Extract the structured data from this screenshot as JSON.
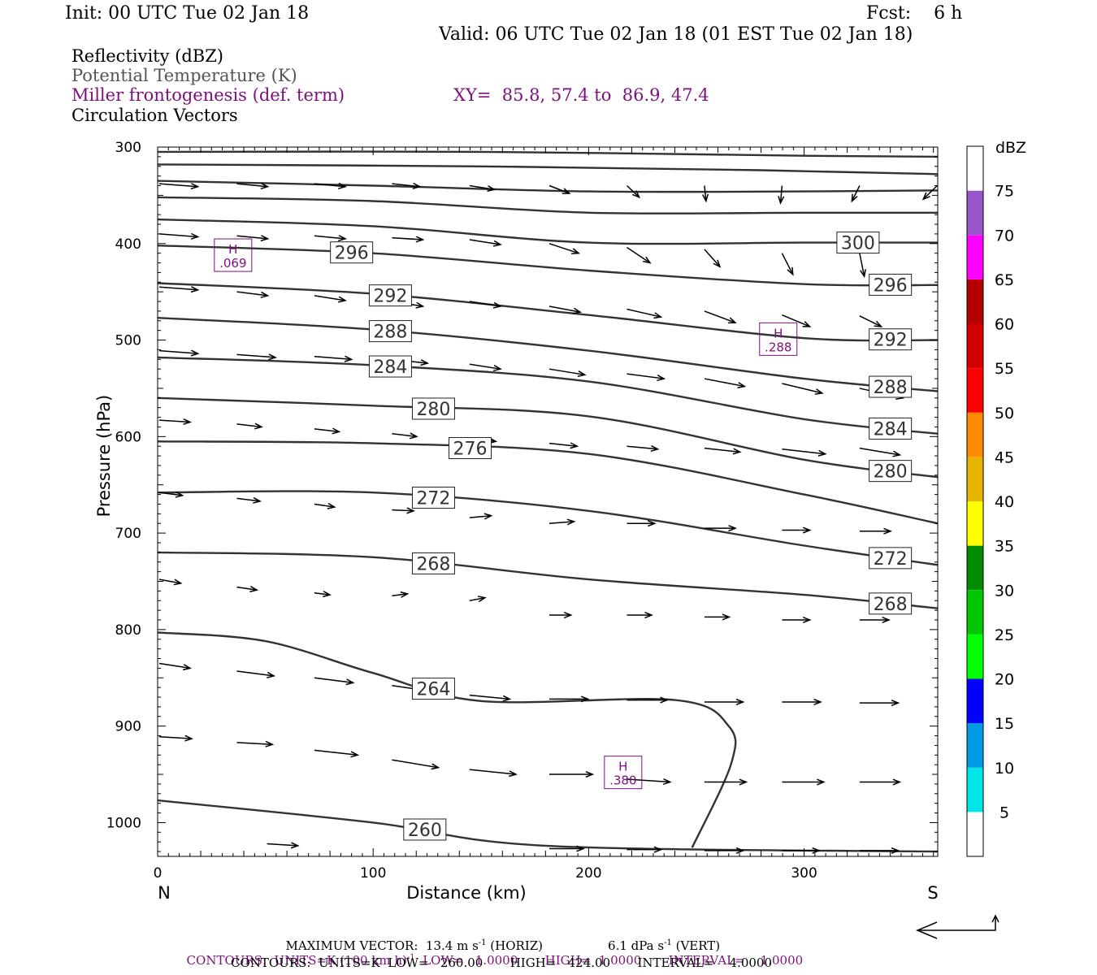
{
  "header": {
    "init": "Init: 00 UTC Tue 02 Jan 18",
    "fcst": "Fcst:    6 h",
    "valid": "Valid: 06 UTC Tue 02 Jan 18 (01 EST Tue 02 Jan 18)"
  },
  "legend": {
    "line1": "Reflectivity (dBZ)",
    "line2": "Potential Temperature (K)",
    "line3": "Miller frontogenesis (def. term)",
    "xy": "XY=  85.8, 57.4 to  86.9, 47.4",
    "line4": "Circulation Vectors"
  },
  "footer": {
    "max_vector": "MAXIMUM VECTOR:  13.4 m s",
    "horiz": " (HORIZ)",
    "vert_value": "6.1 dPa s",
    "vert": " (VERT)",
    "contours1_a": "CONTOURS:  UNITS=K (100 km h)",
    "contours1_b": "  LOW=   1.0000       HIGH=  1.0000       INTERVAL=    1.0000",
    "contours2": "CONTOURS:  UNITS=K  LOW=   260.00       HIGH=   424.00       INTERVAL=    4.0000",
    "exponent": "-1"
  },
  "chart_data": {
    "type": "cross-section",
    "xlabel": "Distance (km)",
    "ylabel": "Pressure (hPa)",
    "xlim": [
      0,
      362
    ],
    "ylim": [
      300,
      1035
    ],
    "y_log": false,
    "x_ticks": [
      0,
      100,
      200,
      300
    ],
    "y_ticks": [
      300,
      400,
      500,
      600,
      700,
      800,
      900,
      1000
    ],
    "endpoint_labels": {
      "left": "N",
      "right": "S"
    },
    "colorbar": {
      "unit": "dBZ",
      "levels": [
        5,
        10,
        15,
        20,
        25,
        30,
        35,
        40,
        45,
        50,
        55,
        60,
        65,
        70,
        75
      ],
      "colors": [
        "#ffffff",
        "#00e6e6",
        "#0099e6",
        "#0000ff",
        "#00ff00",
        "#00c800",
        "#008c00",
        "#ffff00",
        "#e6b400",
        "#ff8c00",
        "#ff0000",
        "#d40000",
        "#b40000",
        "#ff00ff",
        "#9955cc",
        "#ffffff"
      ]
    },
    "theta_contours": [
      {
        "label": "",
        "points": [
          [
            0,
            305
          ],
          [
            150,
            305
          ],
          [
            300,
            309
          ],
          [
            362,
            310
          ]
        ]
      },
      {
        "label": "",
        "points": [
          [
            0,
            318
          ],
          [
            150,
            320
          ],
          [
            280,
            324
          ],
          [
            362,
            328
          ]
        ]
      },
      {
        "label": "",
        "points": [
          [
            0,
            335
          ],
          [
            100,
            340
          ],
          [
            200,
            346
          ],
          [
            300,
            346
          ],
          [
            362,
            345
          ]
        ]
      },
      {
        "label": "",
        "points": [
          [
            0,
            352
          ],
          [
            100,
            356
          ],
          [
            200,
            368
          ],
          [
            300,
            368
          ],
          [
            362,
            368
          ]
        ]
      },
      {
        "label": "300",
        "points": [
          [
            0,
            375
          ],
          [
            100,
            382
          ],
          [
            200,
            399
          ],
          [
            300,
            399
          ],
          [
            362,
            399
          ]
        ]
      },
      {
        "label": "296",
        "points": [
          [
            0,
            402
          ],
          [
            100,
            410
          ],
          [
            200,
            428
          ],
          [
            300,
            442
          ],
          [
            362,
            443
          ]
        ]
      },
      {
        "label": "292",
        "points": [
          [
            0,
            441
          ],
          [
            100,
            452
          ],
          [
            200,
            474
          ],
          [
            300,
            498
          ],
          [
            362,
            500
          ]
        ]
      },
      {
        "label": "288",
        "points": [
          [
            0,
            477
          ],
          [
            100,
            489
          ],
          [
            200,
            511
          ],
          [
            300,
            540
          ],
          [
            362,
            553
          ]
        ]
      },
      {
        "label": "284",
        "points": [
          [
            0,
            518
          ],
          [
            100,
            526
          ],
          [
            200,
            543
          ],
          [
            300,
            582
          ],
          [
            362,
            597
          ]
        ]
      },
      {
        "label": "280",
        "points": [
          [
            0,
            560
          ],
          [
            100,
            568
          ],
          [
            200,
            579
          ],
          [
            300,
            624
          ],
          [
            362,
            642
          ]
        ]
      },
      {
        "label": "276",
        "points": [
          [
            0,
            605
          ],
          [
            100,
            607
          ],
          [
            200,
            618
          ],
          [
            300,
            660
          ],
          [
            362,
            690
          ]
        ]
      },
      {
        "label": "272",
        "points": [
          [
            0,
            658
          ],
          [
            100,
            658
          ],
          [
            200,
            677
          ],
          [
            300,
            713
          ],
          [
            362,
            733
          ]
        ]
      },
      {
        "label": "268",
        "points": [
          [
            0,
            720
          ],
          [
            100,
            725
          ],
          [
            200,
            748
          ],
          [
            300,
            764
          ],
          [
            362,
            778
          ]
        ]
      },
      {
        "label": "264",
        "points": [
          [
            0,
            803
          ],
          [
            50,
            812
          ],
          [
            100,
            845
          ],
          [
            150,
            874
          ],
          [
            240,
            873
          ],
          [
            265,
            900
          ],
          [
            266,
            940
          ],
          [
            248,
            1026
          ]
        ]
      },
      {
        "label": "260",
        "points": [
          [
            0,
            977
          ],
          [
            100,
            1000
          ],
          [
            180,
            1024
          ],
          [
            362,
            1030
          ]
        ]
      }
    ],
    "frontogenesis_maxima": [
      {
        "label": "H",
        "value": ".069",
        "x": 35,
        "p": 412
      },
      {
        "label": "H",
        "value": ".288",
        "x": 288,
        "p": 499
      },
      {
        "label": "H",
        "value": ".380",
        "x": 216,
        "p": 948
      }
    ],
    "vector_rows": [
      {
        "p": 340,
        "vecs": [
          [
            0,
            338,
            25,
            3
          ],
          [
            36,
            338,
            20,
            3
          ],
          [
            72,
            338,
            20,
            3
          ],
          [
            108,
            338,
            18,
            3
          ],
          [
            144,
            340,
            16,
            4
          ],
          [
            181,
            340,
            13,
            8
          ],
          [
            217,
            340,
            8,
            12
          ],
          [
            253,
            340,
            1,
            16
          ],
          [
            289,
            340,
            -1,
            18
          ],
          [
            325,
            340,
            -5,
            16
          ],
          [
            361,
            340,
            -9,
            14
          ]
        ]
      },
      {
        "p": 392,
        "vecs": [
          [
            0,
            390,
            25,
            3
          ],
          [
            36,
            392,
            20,
            3
          ],
          [
            72,
            392,
            20,
            3
          ],
          [
            108,
            394,
            20,
            2
          ],
          [
            144,
            396,
            20,
            5
          ],
          [
            181,
            400,
            19,
            10
          ],
          [
            217,
            404,
            15,
            16
          ],
          [
            253,
            406,
            10,
            18
          ],
          [
            289,
            410,
            7,
            22
          ],
          [
            325,
            410,
            3,
            24
          ]
        ]
      },
      {
        "p": 452,
        "vecs": [
          [
            0,
            445,
            25,
            3
          ],
          [
            36,
            450,
            20,
            4
          ],
          [
            72,
            454,
            20,
            5
          ],
          [
            108,
            460,
            20,
            5
          ],
          [
            144,
            460,
            20,
            5
          ],
          [
            181,
            465,
            20,
            6
          ],
          [
            217,
            468,
            22,
            8
          ],
          [
            253,
            470,
            20,
            12
          ],
          [
            289,
            474,
            18,
            12
          ],
          [
            325,
            475,
            14,
            11
          ]
        ]
      },
      {
        "p": 514,
        "vecs": [
          [
            0,
            511,
            25,
            3
          ],
          [
            36,
            515,
            25,
            3
          ],
          [
            72,
            517,
            24,
            3
          ],
          [
            108,
            520,
            23,
            4
          ],
          [
            144,
            525,
            20,
            5
          ],
          [
            181,
            530,
            23,
            6
          ],
          [
            217,
            535,
            24,
            5
          ],
          [
            253,
            540,
            26,
            8
          ],
          [
            289,
            545,
            26,
            10
          ],
          [
            325,
            550,
            28,
            10
          ]
        ]
      },
      {
        "p": 585,
        "vecs": [
          [
            0,
            583,
            20,
            2
          ],
          [
            36,
            587,
            16,
            3
          ],
          [
            72,
            592,
            16,
            3
          ],
          [
            108,
            597,
            16,
            3
          ],
          [
            144,
            602,
            17,
            3
          ],
          [
            181,
            607,
            18,
            3
          ],
          [
            217,
            610,
            20,
            3
          ],
          [
            253,
            612,
            23,
            4
          ],
          [
            289,
            613,
            28,
            5
          ],
          [
            325,
            612,
            26,
            7
          ]
        ]
      },
      {
        "p": 665,
        "vecs": [
          [
            0,
            658,
            15,
            3
          ],
          [
            36,
            664,
            15,
            3
          ],
          [
            72,
            670,
            13,
            3
          ],
          [
            108,
            676,
            14,
            1
          ],
          [
            144,
            684,
            14,
            -2
          ],
          [
            181,
            690,
            16,
            -2
          ],
          [
            217,
            690,
            18,
            0
          ],
          [
            253,
            695,
            20,
            0
          ],
          [
            289,
            697,
            18,
            0
          ],
          [
            325,
            698,
            20,
            0
          ]
        ]
      },
      {
        "p": 756,
        "vecs": [
          [
            0,
            748,
            14,
            4
          ],
          [
            36,
            756,
            13,
            3
          ],
          [
            72,
            762,
            10,
            2
          ],
          [
            108,
            765,
            10,
            -2
          ],
          [
            144,
            770,
            10,
            -3
          ],
          [
            181,
            785,
            14,
            0
          ],
          [
            217,
            785,
            16,
            0
          ],
          [
            253,
            787,
            16,
            0
          ],
          [
            289,
            790,
            18,
            0
          ],
          [
            325,
            790,
            19,
            0
          ]
        ]
      },
      {
        "p": 848,
        "vecs": [
          [
            0,
            835,
            20,
            5
          ],
          [
            36,
            843,
            24,
            5
          ],
          [
            72,
            850,
            25,
            5
          ],
          [
            108,
            858,
            26,
            6
          ],
          [
            144,
            868,
            26,
            4
          ],
          [
            181,
            872,
            25,
            0
          ],
          [
            217,
            873,
            26,
            0
          ],
          [
            253,
            875,
            25,
            0
          ],
          [
            289,
            875,
            25,
            0
          ],
          [
            325,
            876,
            25,
            0
          ]
        ]
      },
      {
        "p": 940,
        "vecs": [
          [
            0,
            911,
            21,
            2
          ],
          [
            36,
            917,
            23,
            2
          ],
          [
            72,
            925,
            28,
            5
          ],
          [
            108,
            935,
            30,
            8
          ],
          [
            144,
            945,
            30,
            5
          ],
          [
            181,
            950,
            28,
            0
          ],
          [
            217,
            955,
            28,
            3
          ],
          [
            253,
            958,
            27,
            0
          ],
          [
            289,
            958,
            27,
            0
          ],
          [
            325,
            958,
            26,
            0
          ]
        ]
      },
      {
        "p": 1028,
        "vecs": [
          [
            50,
            1022,
            20,
            2
          ],
          [
            181,
            1027,
            22,
            0
          ],
          [
            217,
            1028,
            22,
            0
          ],
          [
            253,
            1029,
            25,
            0
          ],
          [
            289,
            1029,
            24,
            0
          ],
          [
            325,
            1029,
            25,
            0
          ]
        ]
      }
    ]
  }
}
